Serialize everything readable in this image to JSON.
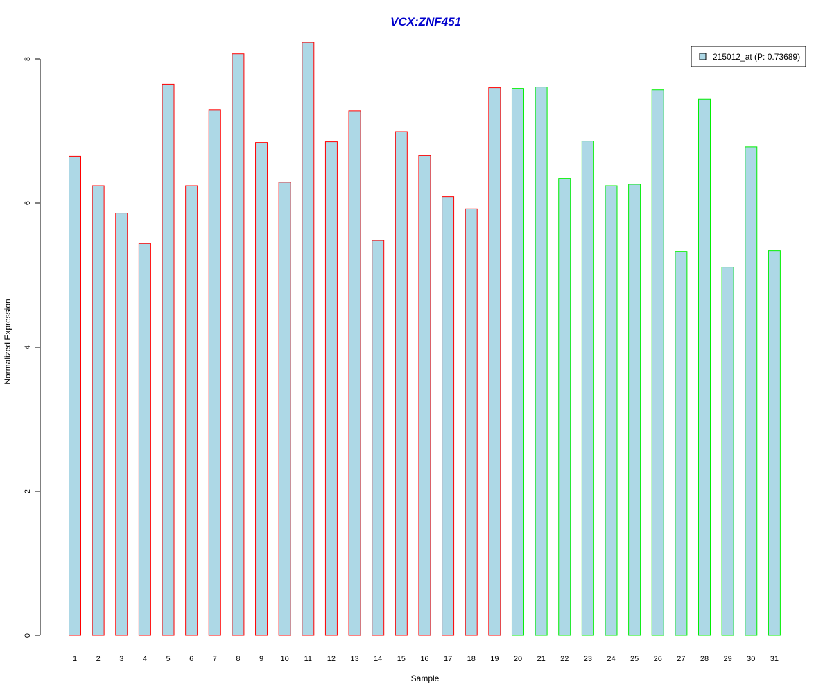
{
  "chart_data": {
    "type": "bar",
    "title": "VCX:ZNF451",
    "xlabel": "Sample",
    "ylabel": "Normalized Expression",
    "ylim": [
      0,
      8.4
    ],
    "yticks": [
      "0",
      "2",
      "4",
      "6",
      "8"
    ],
    "categories": [
      "1",
      "2",
      "3",
      "4",
      "5",
      "6",
      "7",
      "8",
      "9",
      "10",
      "11",
      "12",
      "13",
      "14",
      "15",
      "16",
      "17",
      "18",
      "19",
      "20",
      "21",
      "22",
      "23",
      "24",
      "25",
      "26",
      "27",
      "28",
      "29",
      "30",
      "31"
    ],
    "series": [
      {
        "name": "215012_at (P: 0.73689)",
        "fill": "#add8e6",
        "values": [
          6.65,
          6.24,
          5.86,
          5.44,
          7.65,
          6.24,
          7.29,
          8.07,
          6.84,
          6.29,
          8.23,
          6.85,
          7.28,
          5.48,
          6.99,
          6.66,
          6.09,
          5.92,
          7.6,
          7.59,
          7.61,
          6.34,
          6.86,
          6.24,
          6.26,
          7.57,
          5.33,
          7.44,
          5.11,
          6.78,
          5.34
        ]
      }
    ],
    "group_border_colors": [
      "#ff0000",
      "#ff0000",
      "#ff0000",
      "#ff0000",
      "#ff0000",
      "#ff0000",
      "#ff0000",
      "#ff0000",
      "#ff0000",
      "#ff0000",
      "#ff0000",
      "#ff0000",
      "#ff0000",
      "#ff0000",
      "#ff0000",
      "#ff0000",
      "#ff0000",
      "#ff0000",
      "#ff0000",
      "#00ee00",
      "#00ee00",
      "#00ee00",
      "#00ee00",
      "#00ee00",
      "#00ee00",
      "#00ee00",
      "#00ee00",
      "#00ee00",
      "#00ee00",
      "#00ee00",
      "#00ee00"
    ],
    "legend_position": "top-right",
    "grid": false
  }
}
